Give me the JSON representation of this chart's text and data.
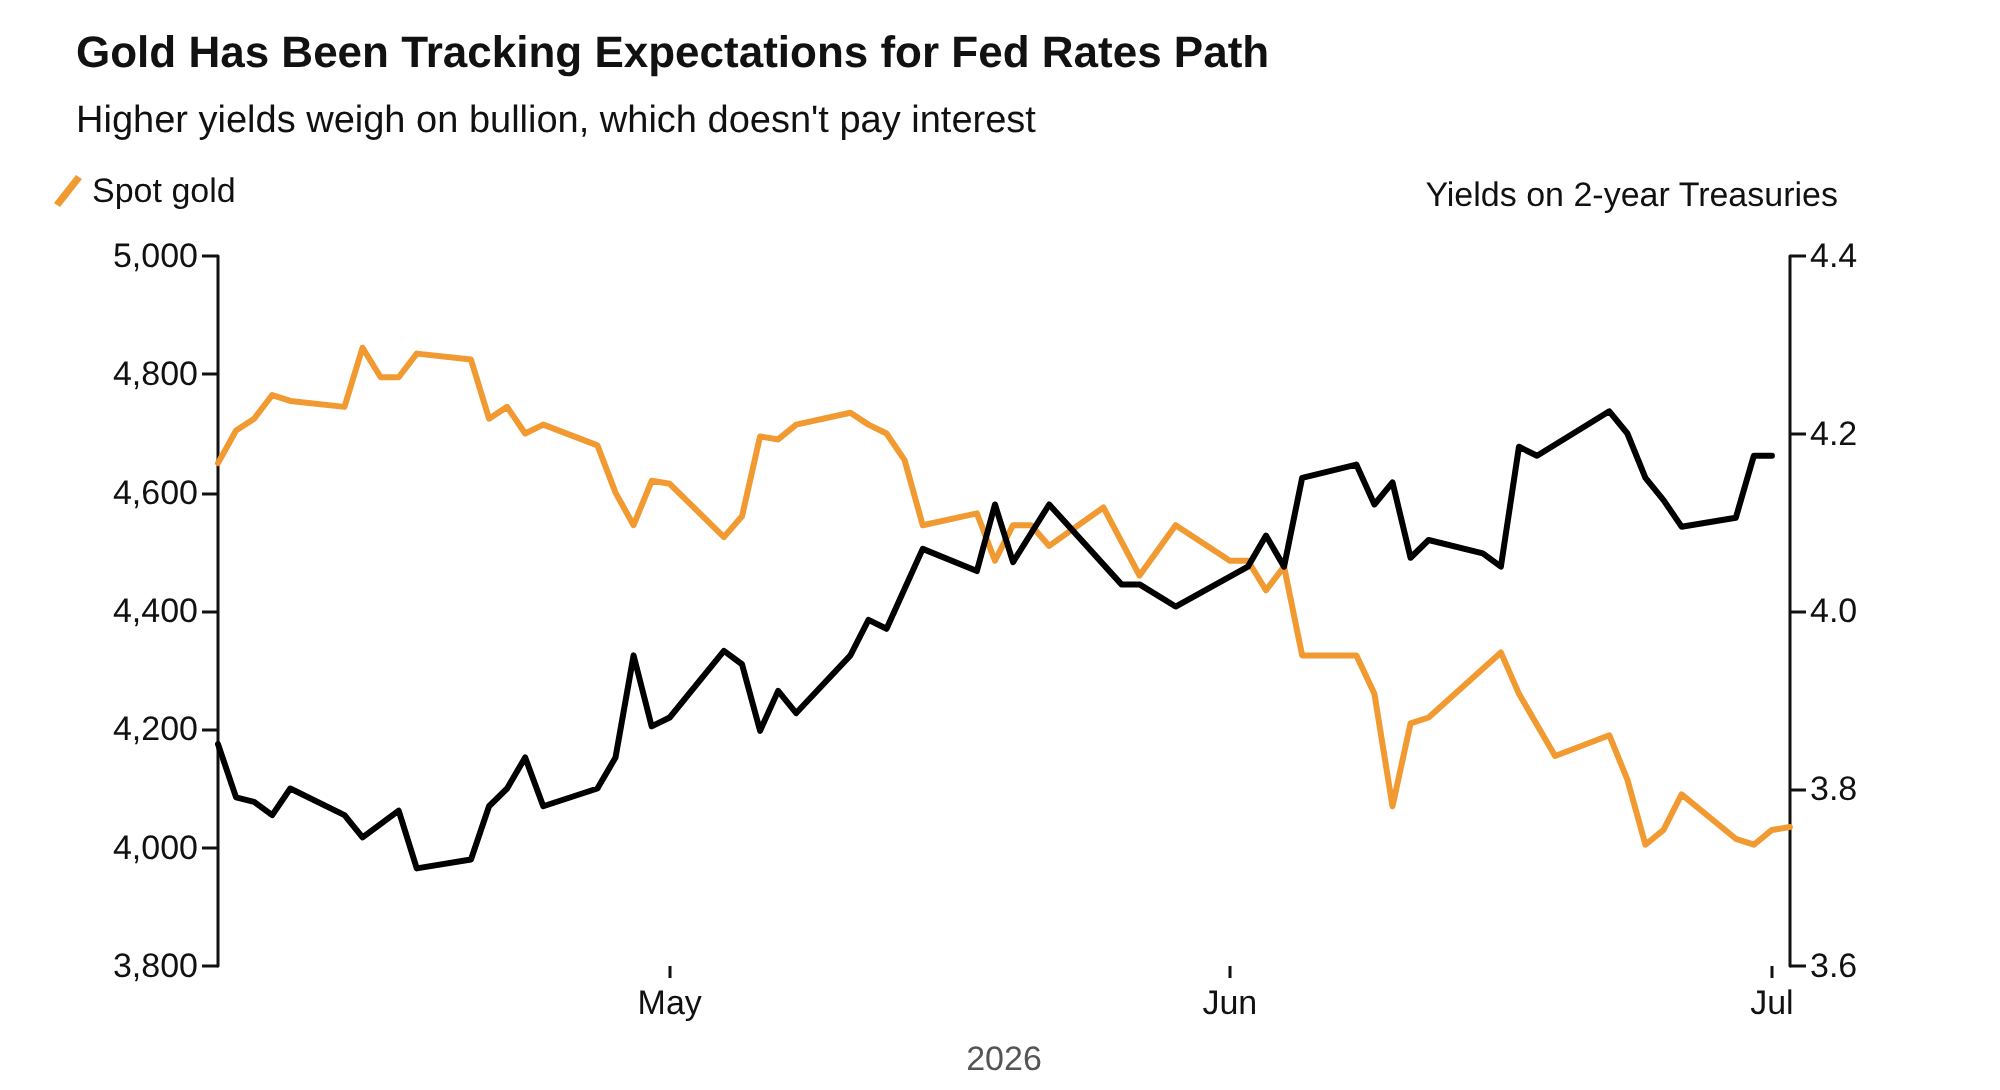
{
  "chart_data": {
    "type": "line",
    "title": "Gold Has Been Tracking Expectations for Fed Rates Path",
    "subtitle": "Higher yields weigh on bullion, which doesn't pay interest",
    "xlabel": "2026",
    "y2label": "Yields on 2-year Treasuries",
    "series": [
      {
        "name": "Spot gold",
        "color": "#f29a32",
        "x": [
          "2026-04-06",
          "2026-04-07",
          "2026-04-08",
          "2026-04-09",
          "2026-04-10",
          "2026-04-13",
          "2026-04-14",
          "2026-04-15",
          "2026-04-16",
          "2026-04-17",
          "2026-04-20",
          "2026-04-21",
          "2026-04-22",
          "2026-04-23",
          "2026-04-24",
          "2026-04-27",
          "2026-04-28",
          "2026-04-29",
          "2026-04-30",
          "2026-05-01",
          "2026-05-04",
          "2026-05-05",
          "2026-05-06",
          "2026-05-07",
          "2026-05-08",
          "2026-05-11",
          "2026-05-12",
          "2026-05-13",
          "2026-05-14",
          "2026-05-15",
          "2026-05-18",
          "2026-05-19",
          "2026-05-20",
          "2026-05-21",
          "2026-05-22",
          "2026-05-25",
          "2026-05-27",
          "2026-05-29",
          "2026-06-01",
          "2026-06-02",
          "2026-06-03",
          "2026-06-04",
          "2026-06-05",
          "2026-06-08",
          "2026-06-09",
          "2026-06-10",
          "2026-06-11",
          "2026-06-12",
          "2026-06-16",
          "2026-06-17",
          "2026-06-19",
          "2026-06-22",
          "2026-06-23",
          "2026-06-24",
          "2026-06-25",
          "2026-06-26",
          "2026-06-29",
          "2026-06-30",
          "2026-07-01",
          "2026-07-02"
        ],
        "values": [
          4650,
          4705,
          4725,
          4765,
          4755,
          4745,
          4845,
          4795,
          4795,
          4835,
          4825,
          4725,
          4745,
          4700,
          4715,
          4680,
          4600,
          4545,
          4620,
          4615,
          4525,
          4560,
          4695,
          4690,
          4715,
          4735,
          4715,
          4700,
          4655,
          4545,
          4565,
          4485,
          4545,
          4545,
          4510,
          4575,
          4460,
          4545,
          4485,
          4485,
          4435,
          4475,
          4325,
          4325,
          4260,
          4070,
          4210,
          4220,
          4330,
          4260,
          4155,
          4190,
          4115,
          4005,
          4030,
          4090,
          4015,
          4005,
          4030,
          4035
        ]
      },
      {
        "color": "#000000",
        "axis": "y2",
        "x": [
          "2026-04-06",
          "2026-04-07",
          "2026-04-08",
          "2026-04-09",
          "2026-04-10",
          "2026-04-13",
          "2026-04-14",
          "2026-04-16",
          "2026-04-17",
          "2026-04-20",
          "2026-04-21",
          "2026-04-22",
          "2026-04-23",
          "2026-04-24",
          "2026-04-27",
          "2026-04-28",
          "2026-04-29",
          "2026-04-30",
          "2026-05-01",
          "2026-05-04",
          "2026-05-05",
          "2026-05-06",
          "2026-05-07",
          "2026-05-08",
          "2026-05-11",
          "2026-05-12",
          "2026-05-13",
          "2026-05-14",
          "2026-05-15",
          "2026-05-18",
          "2026-05-19",
          "2026-05-20",
          "2026-05-22",
          "2026-05-26",
          "2026-05-27",
          "2026-05-29",
          "2026-06-02",
          "2026-06-03",
          "2026-06-04",
          "2026-06-05",
          "2026-06-08",
          "2026-06-09",
          "2026-06-10",
          "2026-06-11",
          "2026-06-12",
          "2026-06-15",
          "2026-06-16",
          "2026-06-17",
          "2026-06-18",
          "2026-06-22",
          "2026-06-23",
          "2026-06-24",
          "2026-06-25",
          "2026-06-26",
          "2026-06-29",
          "2026-06-30",
          "2026-07-01"
        ],
        "values": [
          3.85,
          3.79,
          3.785,
          3.77,
          3.8,
          3.77,
          3.745,
          3.775,
          3.71,
          3.72,
          3.78,
          3.8,
          3.835,
          3.78,
          3.8,
          3.835,
          3.95,
          3.87,
          3.88,
          3.955,
          3.94,
          3.865,
          3.91,
          3.885,
          3.95,
          3.99,
          3.98,
          4.025,
          4.07,
          4.045,
          4.12,
          4.055,
          4.12,
          4.03,
          4.03,
          4.005,
          4.05,
          4.085,
          4.05,
          4.15,
          4.165,
          4.12,
          4.145,
          4.06,
          4.08,
          4.065,
          4.05,
          4.185,
          4.175,
          4.225,
          4.2,
          4.15,
          4.125,
          4.095,
          4.105,
          4.175,
          4.175
        ]
      }
    ],
    "xlim": [
      "2026-04-06",
      "2026-07-02"
    ],
    "xticks": [
      {
        "value": "2026-05-01",
        "label": "May"
      },
      {
        "value": "2026-06-01",
        "label": "Jun"
      },
      {
        "value": "2026-07-01",
        "label": "Jul"
      }
    ],
    "ylim": [
      3800,
      5000
    ],
    "yticks": [
      {
        "value": 3800,
        "label": "3,800"
      },
      {
        "value": 4000,
        "label": "4,000"
      },
      {
        "value": 4200,
        "label": "4,200"
      },
      {
        "value": 4400,
        "label": "4,400"
      },
      {
        "value": 4600,
        "label": "4,600"
      },
      {
        "value": 4800,
        "label": "4,800"
      },
      {
        "value": 5000,
        "label": "5,000"
      }
    ],
    "y2lim": [
      3.6,
      4.4
    ],
    "y2ticks": [
      {
        "value": 3.6,
        "label": "3.6"
      },
      {
        "value": 3.8,
        "label": "3.8"
      },
      {
        "value": 4,
        "label": "4.0"
      },
      {
        "value": 4.2,
        "label": "4.2"
      },
      {
        "value": 4.4,
        "label": "4.4"
      }
    ],
    "legend": "top left",
    "grid": false,
    "marker": "none",
    "line_style": "solid"
  }
}
